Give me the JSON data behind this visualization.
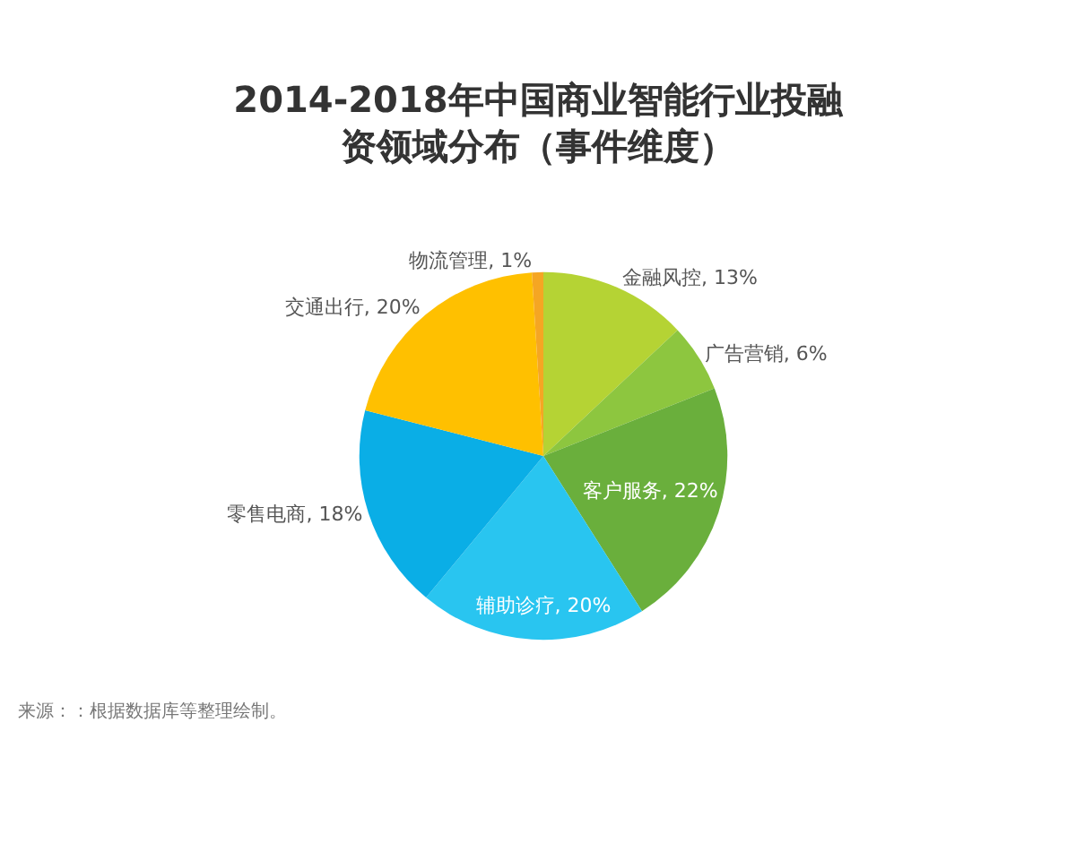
{
  "chart_data": {
    "type": "pie",
    "title": "2014-2018年中国商业智能行业投融资领域分布（事件维度）",
    "categories": [
      "金融风控",
      "广告营销",
      "客户服务",
      "辅助诊疗",
      "零售电商",
      "交通出行",
      "物流管理"
    ],
    "values": [
      13,
      6,
      22,
      20,
      18,
      20,
      1
    ],
    "value_labels": [
      "13%",
      "6%",
      "22%",
      "20%",
      "18%",
      "20%",
      "1%"
    ],
    "colors": [
      "#b5d334",
      "#8dc63f",
      "#6aaf3c",
      "#29c5f0",
      "#0aaee6",
      "#ffc000",
      "#f5a623"
    ],
    "annotations": [
      "来源：：根据数据库等整理绘制。"
    ],
    "legend": false
  }
}
